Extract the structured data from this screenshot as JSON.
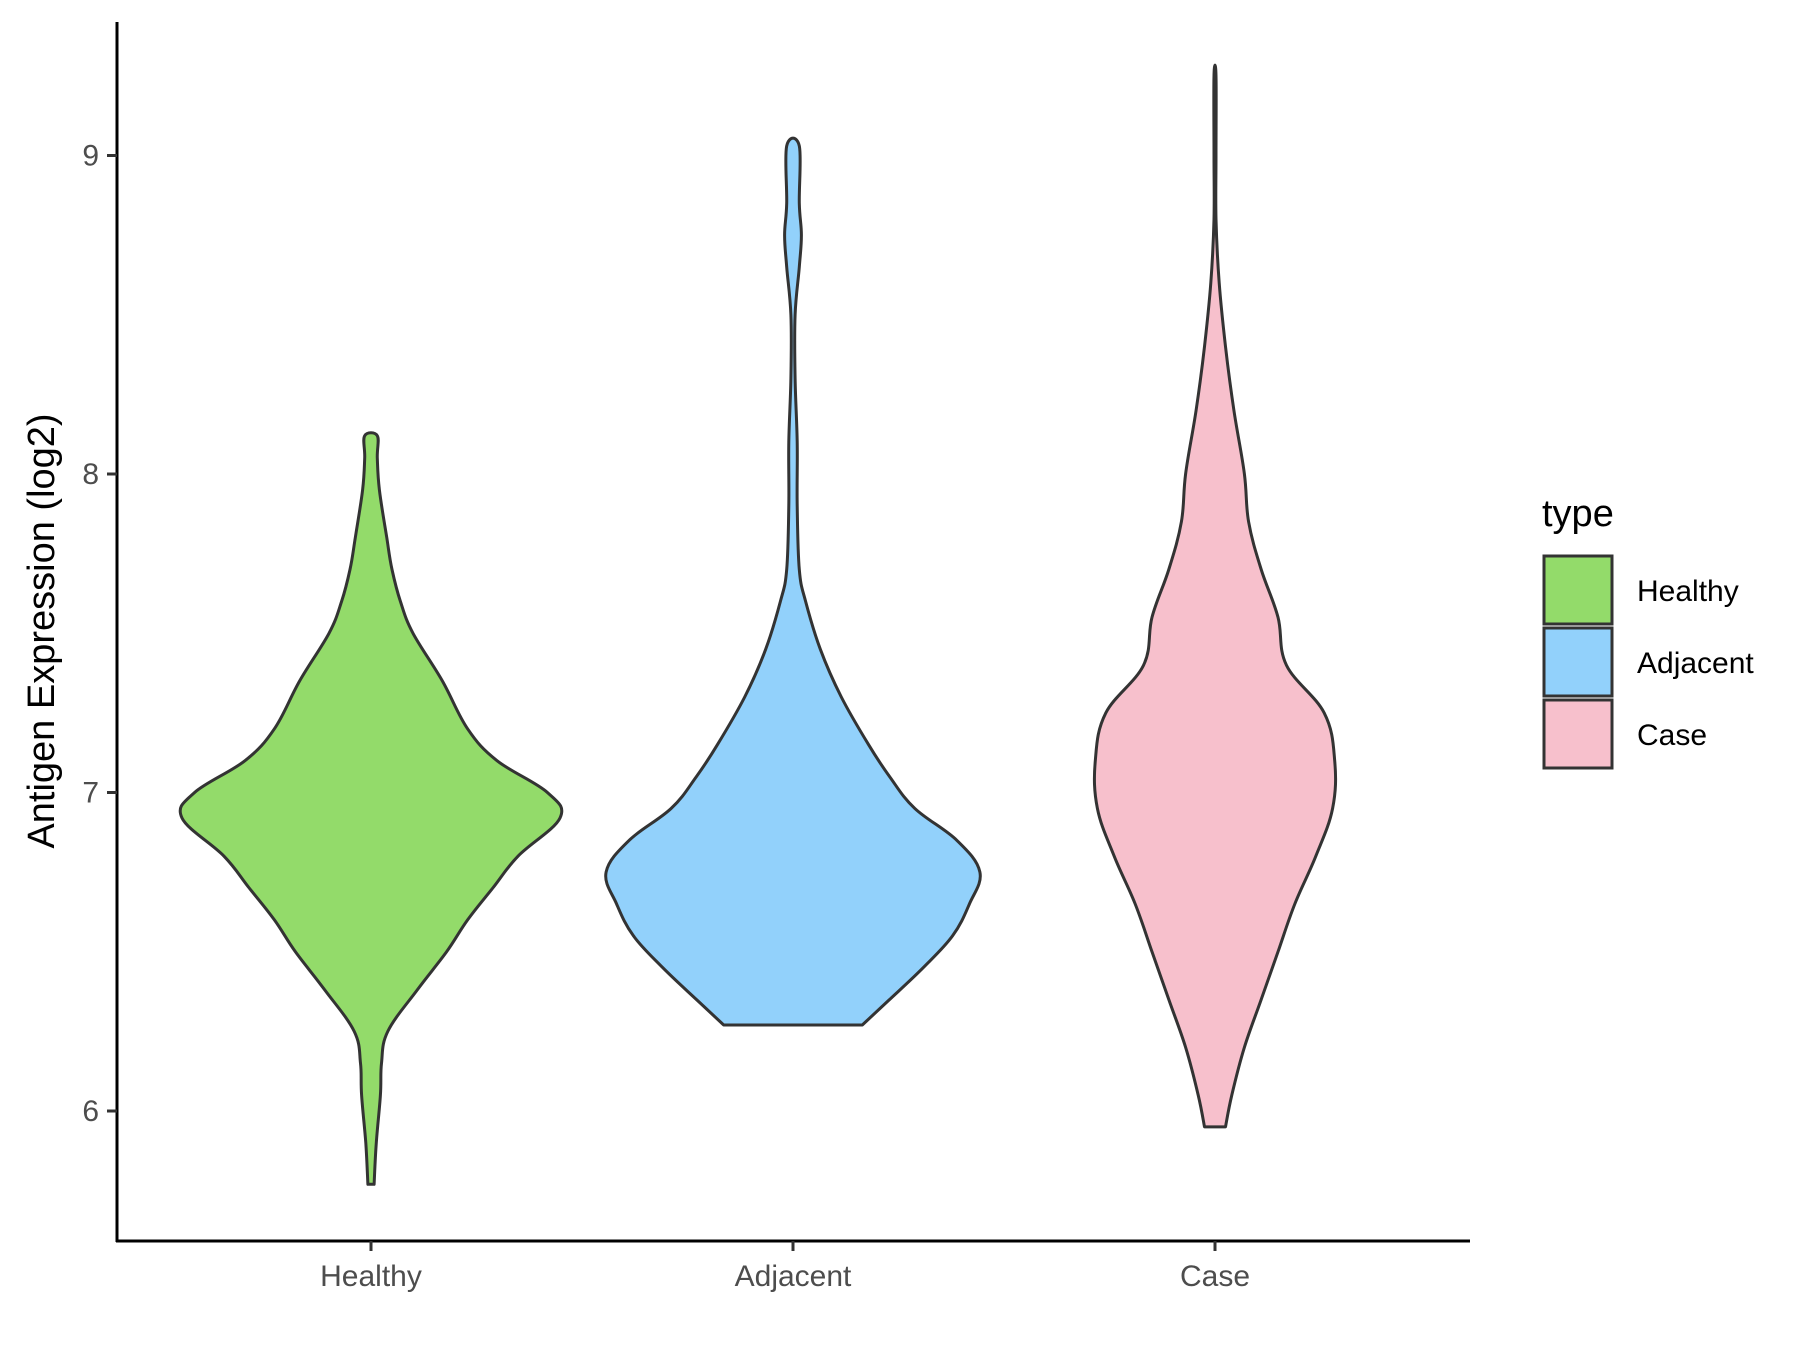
{
  "chart_data": {
    "type": "violin",
    "title": "",
    "xlabel": "",
    "ylabel": "Antigen Expression (log2)",
    "ylim": [
      5.6,
      9.4
    ],
    "yticks": [
      6,
      7,
      8,
      9
    ],
    "categories": [
      "Healthy",
      "Adjacent",
      "Case"
    ],
    "grid": false,
    "legend": {
      "title": "type",
      "position": "right",
      "entries": [
        "Healthy",
        "Adjacent",
        "Case"
      ]
    },
    "series": [
      {
        "name": "Healthy",
        "color": "#93DB6A",
        "profile": [
          [
            5.77,
            0.015
          ],
          [
            5.9,
            0.025
          ],
          [
            6.05,
            0.045
          ],
          [
            6.15,
            0.05
          ],
          [
            6.25,
            0.08
          ],
          [
            6.38,
            0.22
          ],
          [
            6.5,
            0.36
          ],
          [
            6.6,
            0.46
          ],
          [
            6.7,
            0.58
          ],
          [
            6.8,
            0.7
          ],
          [
            6.92,
            0.9
          ],
          [
            7.0,
            0.84
          ],
          [
            7.1,
            0.6
          ],
          [
            7.2,
            0.46
          ],
          [
            7.35,
            0.34
          ],
          [
            7.5,
            0.2
          ],
          [
            7.6,
            0.14
          ],
          [
            7.7,
            0.1
          ],
          [
            7.8,
            0.075
          ],
          [
            7.95,
            0.04
          ],
          [
            8.05,
            0.03
          ],
          [
            8.12,
            0.03
          ]
        ]
      },
      {
        "name": "Adjacent",
        "color": "#92D1FB",
        "profile": [
          [
            6.27,
            0.33
          ],
          [
            6.35,
            0.46
          ],
          [
            6.45,
            0.62
          ],
          [
            6.55,
            0.76
          ],
          [
            6.65,
            0.84
          ],
          [
            6.75,
            0.89
          ],
          [
            6.85,
            0.78
          ],
          [
            6.95,
            0.58
          ],
          [
            7.05,
            0.46
          ],
          [
            7.15,
            0.36
          ],
          [
            7.3,
            0.23
          ],
          [
            7.45,
            0.13
          ],
          [
            7.6,
            0.06
          ],
          [
            7.7,
            0.03
          ],
          [
            7.9,
            0.02
          ],
          [
            8.1,
            0.02
          ],
          [
            8.3,
            0.01
          ],
          [
            8.5,
            0.01
          ],
          [
            8.65,
            0.03
          ],
          [
            8.75,
            0.04
          ],
          [
            8.85,
            0.03
          ],
          [
            9.03,
            0.03
          ]
        ]
      },
      {
        "name": "Case",
        "color": "#F7C0CC",
        "profile": [
          [
            5.95,
            0.05
          ],
          [
            6.05,
            0.08
          ],
          [
            6.2,
            0.14
          ],
          [
            6.35,
            0.22
          ],
          [
            6.5,
            0.3
          ],
          [
            6.65,
            0.38
          ],
          [
            6.8,
            0.48
          ],
          [
            6.95,
            0.56
          ],
          [
            7.1,
            0.57
          ],
          [
            7.25,
            0.52
          ],
          [
            7.4,
            0.34
          ],
          [
            7.55,
            0.3
          ],
          [
            7.7,
            0.22
          ],
          [
            7.85,
            0.16
          ],
          [
            8.0,
            0.14
          ],
          [
            8.2,
            0.09
          ],
          [
            8.4,
            0.05
          ],
          [
            8.6,
            0.02
          ],
          [
            8.8,
            0.005
          ],
          [
            9.0,
            0.005
          ],
          [
            9.25,
            0.005
          ]
        ]
      }
    ]
  }
}
